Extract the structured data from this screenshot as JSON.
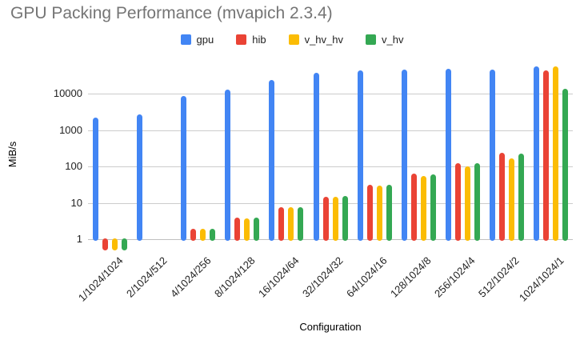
{
  "title": "GPU Packing Performance (mvapich 2.3.4)",
  "chart_data": {
    "type": "bar",
    "title": "GPU Packing Performance (mvapich 2.3.4)",
    "xlabel": "Configuration",
    "ylabel": "MiB/s",
    "y_scale": "log",
    "y_ticks": [
      1,
      10,
      100,
      1000,
      10000
    ],
    "ylim": [
      0.45,
      60000
    ],
    "grid": true,
    "legend_position": "top",
    "categories": [
      "1/1024/1024",
      "2/1024/512",
      "4/1024/256",
      "8/1024/128",
      "16/1024/64",
      "32/1024/32",
      "64/1024/16",
      "128/1024/8",
      "256/1024/4",
      "512/1024/2",
      "1024/1024/1"
    ],
    "series": [
      {
        "name": "gpu",
        "color": "#4285F4",
        "values": [
          2200,
          2700,
          8500,
          13000,
          24000,
          37000,
          44000,
          46000,
          48000,
          46000,
          55000
        ]
      },
      {
        "name": "hib",
        "color": "#EA4335",
        "values": [
          0.5,
          null,
          1.9,
          3.9,
          7.5,
          15,
          31,
          62,
          125,
          240,
          44000
        ]
      },
      {
        "name": "v_hv_hv",
        "color": "#FBBC04",
        "values": [
          0.5,
          null,
          1.9,
          3.8,
          7.5,
          14.5,
          30,
          56,
          100,
          170,
          56000
        ]
      },
      {
        "name": "v_hv",
        "color": "#34A853",
        "values": [
          0.5,
          null,
          1.9,
          3.9,
          7.7,
          15.5,
          32,
          60,
          125,
          230,
          13500
        ]
      }
    ]
  }
}
